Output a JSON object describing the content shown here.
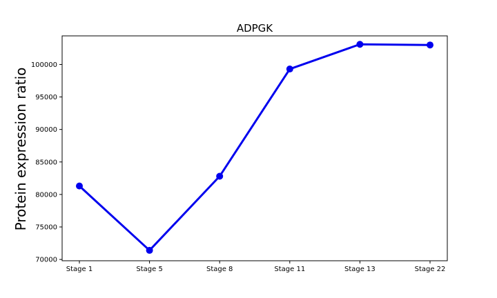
{
  "chart_data": {
    "type": "line",
    "title": "ADPGK",
    "xlabel": "",
    "ylabel": "Protein expression ratio",
    "categories": [
      "Stage 1",
      "Stage 5",
      "Stage 8",
      "Stage 11",
      "Stage 13",
      "Stage 22"
    ],
    "series": [
      {
        "values": [
          81300,
          71400,
          82800,
          99300,
          103100,
          103000
        ],
        "color": "#0000ee"
      }
    ],
    "ylim": [
      69800,
      104400
    ],
    "yticks": [
      70000,
      75000,
      80000,
      85000,
      90000,
      95000,
      100000
    ],
    "grid": false,
    "legend": "none"
  }
}
